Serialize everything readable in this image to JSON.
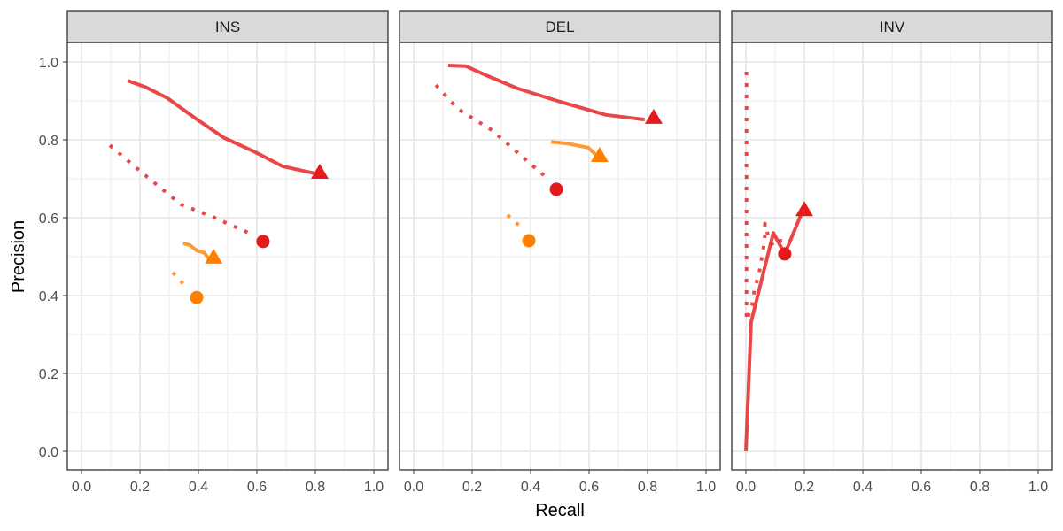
{
  "chart_data": {
    "type": "line",
    "xlabel": "Recall",
    "ylabel": "Precision",
    "xlim": [
      -0.05,
      1.05
    ],
    "ylim": [
      -0.05,
      1.05
    ],
    "x_ticks": [
      "0.0",
      "0.2",
      "0.4",
      "0.6",
      "0.8",
      "1.0"
    ],
    "y_ticks": [
      "0.0",
      "0.2",
      "0.4",
      "0.6",
      "0.8",
      "1.0"
    ],
    "grid": true,
    "colors": {
      "red": "#E41A1C",
      "orange": "#FF7F00"
    },
    "panels": [
      {
        "title": "INS",
        "series": [
          {
            "color": "red",
            "linetype": "solid",
            "marker": "triangle",
            "points": [
              [
                0.158,
                0.952
              ],
              [
                0.218,
                0.936
              ],
              [
                0.294,
                0.907
              ],
              [
                0.39,
                0.855
              ],
              [
                0.488,
                0.805
              ],
              [
                0.59,
                0.77
              ],
              [
                0.688,
                0.732
              ],
              [
                0.748,
                0.722
              ],
              [
                0.797,
                0.714
              ]
            ],
            "marker_point": [
              0.815,
              0.716
            ]
          },
          {
            "color": "red",
            "linetype": "dotted",
            "marker": "circle",
            "points": [
              [
                0.097,
                0.786
              ],
              [
                0.2,
                0.72
              ],
              [
                0.34,
                0.634
              ],
              [
                0.44,
                0.605
              ],
              [
                0.59,
                0.555
              ]
            ],
            "marker_point": [
              0.621,
              0.539
            ]
          },
          {
            "color": "orange",
            "linetype": "solid",
            "marker": "triangle",
            "points": [
              [
                0.348,
                0.534
              ],
              [
                0.37,
                0.53
              ],
              [
                0.394,
                0.516
              ],
              [
                0.42,
                0.51
              ],
              [
                0.44,
                0.49
              ]
            ],
            "marker_point": [
              0.452,
              0.498
            ]
          },
          {
            "color": "orange",
            "linetype": "dotted",
            "marker": "circle",
            "points": [
              [
                0.312,
                0.459
              ],
              [
                0.352,
                0.427
              ]
            ],
            "marker_point": [
              0.394,
              0.395
            ]
          }
        ]
      },
      {
        "title": "DEL",
        "series": [
          {
            "color": "red",
            "linetype": "solid",
            "marker": "triangle",
            "points": [
              [
                0.118,
                0.991
              ],
              [
                0.179,
                0.989
              ],
              [
                0.25,
                0.965
              ],
              [
                0.355,
                0.932
              ],
              [
                0.5,
                0.898
              ],
              [
                0.658,
                0.864
              ],
              [
                0.79,
                0.852
              ]
            ],
            "marker_point": [
              0.821,
              0.857
            ]
          },
          {
            "color": "red",
            "linetype": "dotted",
            "marker": "circle",
            "points": [
              [
                0.076,
                0.941
              ],
              [
                0.15,
                0.88
              ],
              [
                0.267,
                0.825
              ],
              [
                0.406,
                0.734
              ],
              [
                0.445,
                0.709
              ]
            ],
            "marker_point": [
              0.488,
              0.673
            ]
          },
          {
            "color": "orange",
            "linetype": "solid",
            "marker": "triangle",
            "points": [
              [
                0.47,
                0.795
              ],
              [
                0.53,
                0.79
              ],
              [
                0.597,
                0.78
              ],
              [
                0.625,
                0.76
              ]
            ],
            "marker_point": [
              0.636,
              0.759
            ]
          },
          {
            "color": "orange",
            "linetype": "dotted",
            "marker": "circle",
            "points": [
              [
                0.321,
                0.607
              ],
              [
                0.361,
                0.58
              ]
            ],
            "marker_point": [
              0.394,
              0.541
            ]
          }
        ]
      },
      {
        "title": "INV",
        "series": [
          {
            "color": "red",
            "linetype": "solid",
            "marker": "triangle",
            "points": [
              [
                0,
                0
              ],
              [
                0.018,
                0.332
              ],
              [
                0.094,
                0.561
              ],
              [
                0.133,
                0.507
              ],
              [
                0.19,
                0.61
              ]
            ],
            "marker_point": [
              0.2,
              0.62
            ]
          },
          {
            "color": "red",
            "linetype": "dotted",
            "marker": "circle",
            "points": [
              [
                0.002,
                0.975
              ],
              [
                0.002,
                0.336
              ],
              [
                0.021,
                0.375
              ],
              [
                0.03,
                0.418
              ],
              [
                0.045,
                0.457
              ],
              [
                0.055,
                0.5
              ],
              [
                0.064,
                0.539
              ],
              [
                0.065,
                0.585
              ],
              [
                0.079,
                0.545
              ],
              [
                0.094,
                0.527
              ],
              [
                0.118,
                0.539
              ],
              [
                0.118,
                0.56
              ]
            ],
            "marker_point": [
              0.133,
              0.507
            ]
          }
        ]
      }
    ]
  }
}
